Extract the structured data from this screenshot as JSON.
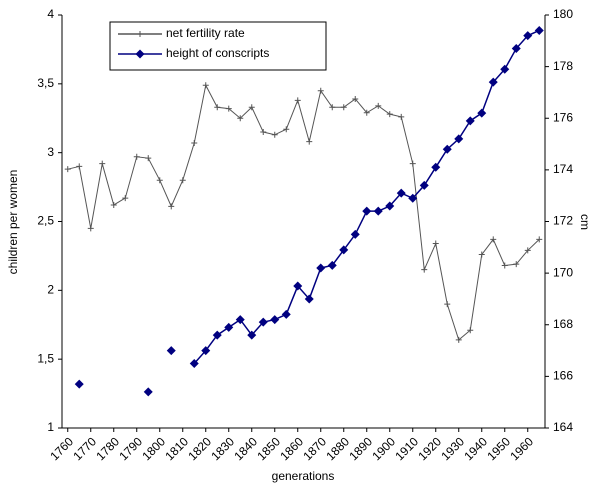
{
  "chart_data": {
    "type": "line",
    "categories": [
      "1760",
      null,
      "1770",
      null,
      "1780",
      null,
      "1790",
      null,
      "1800",
      null,
      "1810",
      null,
      "1820",
      null,
      "1830",
      null,
      "1840",
      null,
      "1850",
      null,
      "1860",
      null,
      "1870",
      null,
      "1880",
      null,
      "1890",
      null,
      "1900",
      null,
      "1910",
      null,
      "1920",
      null,
      "1930",
      null,
      "1940",
      null,
      "1950",
      null,
      "1960",
      null
    ],
    "series": [
      {
        "name": "net fertility rate",
        "color": "#555555",
        "marker": "plus",
        "values": [
          2.88,
          2.9,
          2.45,
          2.92,
          2.62,
          2.67,
          2.97,
          2.96,
          2.8,
          2.61,
          2.8,
          3.07,
          3.49,
          3.33,
          3.32,
          3.25,
          3.33,
          3.15,
          3.13,
          3.17,
          3.38,
          3.08,
          3.45,
          3.33,
          3.33,
          3.39,
          3.29,
          3.34,
          3.28,
          3.26,
          2.92,
          2.15,
          2.34,
          1.9,
          1.64,
          1.71,
          2.26,
          2.37,
          2.18,
          2.19,
          2.29,
          2.37
        ]
      },
      {
        "name": "height of conscripts",
        "color": "#000080",
        "marker": "diamond",
        "axis": "y2",
        "values": [
          null,
          165.7,
          null,
          null,
          null,
          null,
          null,
          165.4,
          null,
          167.0,
          null,
          166.5,
          167.0,
          167.6,
          167.9,
          168.2,
          167.6,
          168.1,
          168.2,
          168.4,
          169.5,
          169.0,
          170.2,
          170.3,
          170.9,
          171.5,
          172.4,
          172.4,
          172.6,
          173.1,
          172.9,
          173.4,
          174.1,
          174.8,
          175.2,
          175.9,
          176.2,
          177.4,
          177.9,
          178.7,
          179.2,
          179.4
        ]
      }
    ],
    "ylim": [
      1,
      4
    ],
    "yticks": [
      1,
      {
        "value": 1.5,
        "label": "1,5"
      },
      2,
      {
        "value": 2.5,
        "label": "2,5"
      },
      3,
      {
        "value": 3.5,
        "label": "3,5"
      },
      4
    ],
    "y2lim": [
      164,
      180
    ],
    "y2ticks": [
      164,
      166,
      168,
      170,
      172,
      174,
      176,
      178,
      180
    ],
    "ylabel": "children per women",
    "y2label": "cm",
    "xlabel": "generations",
    "grid": false,
    "legend": "top"
  }
}
